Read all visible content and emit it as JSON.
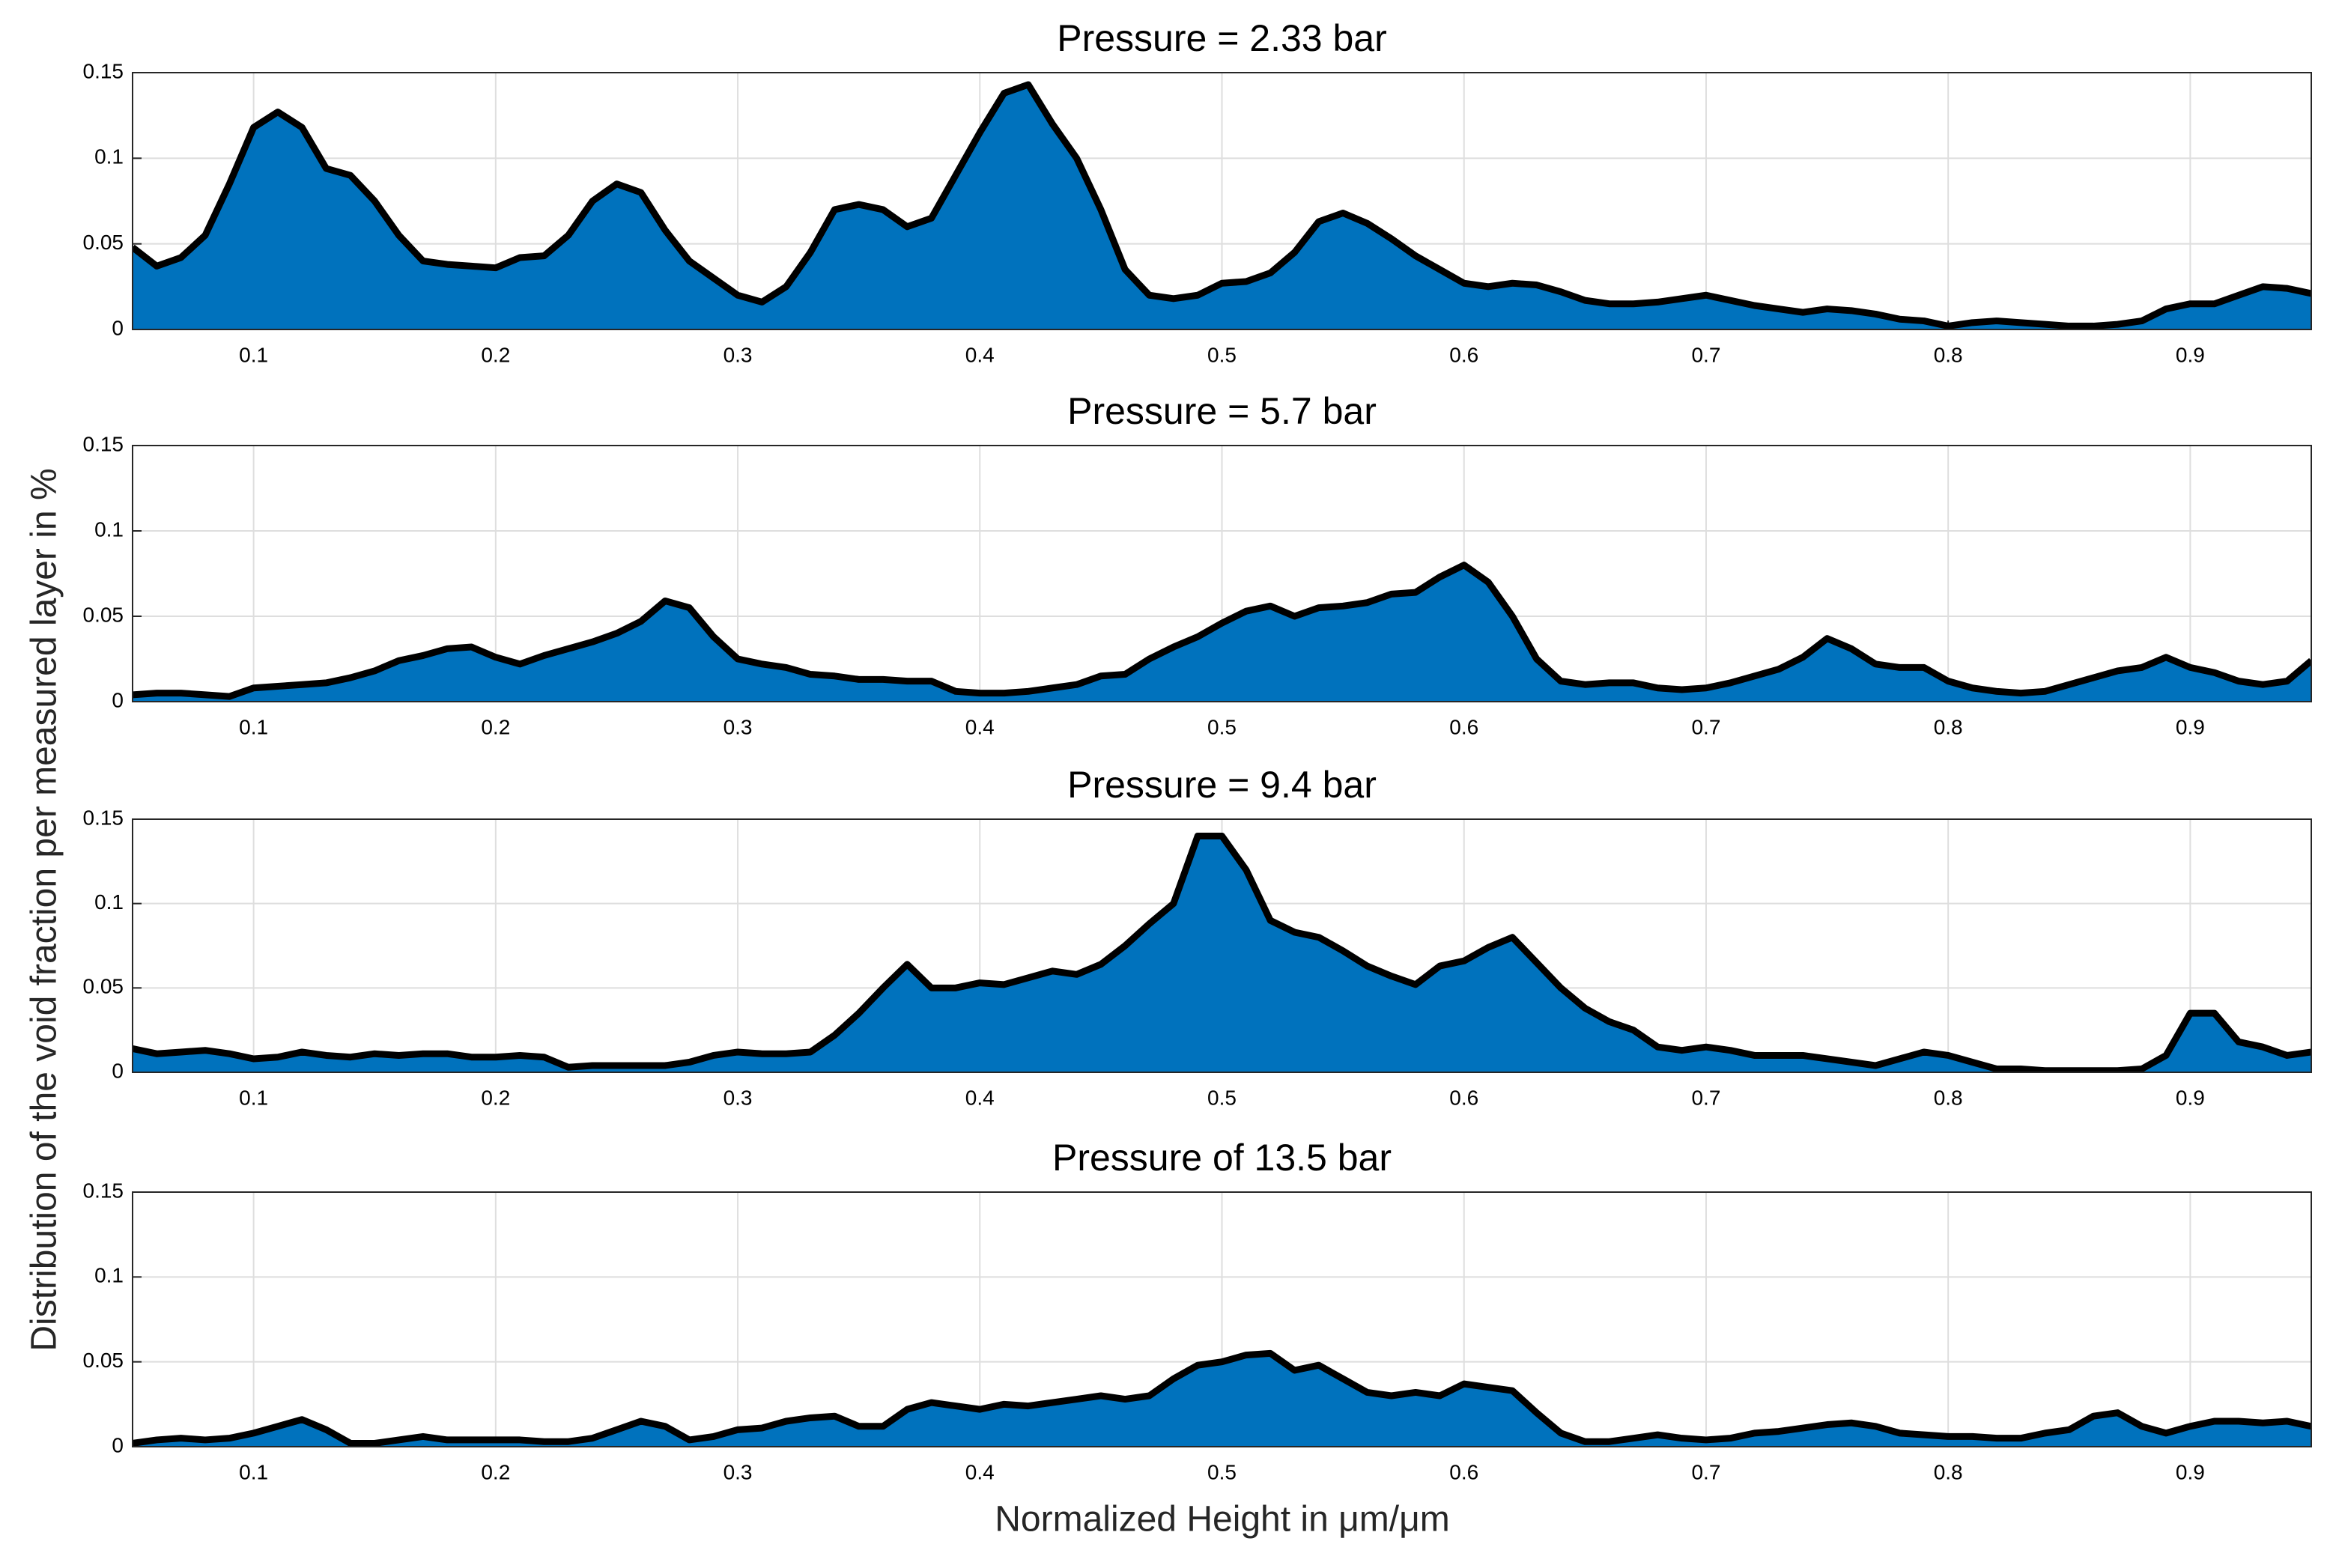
{
  "ylabel": "Distribution of the void fraction per measured layer in %",
  "xlabel": "Normalized Height in μm/μm",
  "chart_data": [
    {
      "type": "area",
      "title": "Pressure = 2.33 bar",
      "color": "#0072bd",
      "line_color": "#000000",
      "grid": true,
      "xlim": [
        0.05,
        0.95
      ],
      "xticks": [
        0.1,
        0.2,
        0.3,
        0.4,
        0.5,
        0.6,
        0.7,
        0.8,
        0.9
      ],
      "ylim": [
        0,
        0.15
      ],
      "yticks": [
        0,
        0.05,
        0.1,
        0.15
      ],
      "x": [
        0.05,
        0.06,
        0.07,
        0.08,
        0.09,
        0.1,
        0.11,
        0.12,
        0.13,
        0.14,
        0.15,
        0.16,
        0.17,
        0.18,
        0.19,
        0.2,
        0.21,
        0.22,
        0.23,
        0.24,
        0.25,
        0.26,
        0.27,
        0.28,
        0.29,
        0.3,
        0.31,
        0.32,
        0.33,
        0.34,
        0.35,
        0.36,
        0.37,
        0.38,
        0.39,
        0.4,
        0.41,
        0.42,
        0.43,
        0.44,
        0.45,
        0.46,
        0.47,
        0.48,
        0.49,
        0.5,
        0.51,
        0.52,
        0.53,
        0.54,
        0.55,
        0.56,
        0.57,
        0.58,
        0.59,
        0.6,
        0.61,
        0.62,
        0.63,
        0.64,
        0.65,
        0.66,
        0.67,
        0.68,
        0.69,
        0.7,
        0.71,
        0.72,
        0.73,
        0.74,
        0.75,
        0.76,
        0.77,
        0.78,
        0.79,
        0.8,
        0.81,
        0.82,
        0.83,
        0.84,
        0.85,
        0.86,
        0.87,
        0.88,
        0.89,
        0.9,
        0.91,
        0.92,
        0.93,
        0.94,
        0.95
      ],
      "values": [
        0.048,
        0.037,
        0.042,
        0.055,
        0.085,
        0.118,
        0.127,
        0.118,
        0.094,
        0.09,
        0.075,
        0.055,
        0.04,
        0.038,
        0.037,
        0.036,
        0.042,
        0.043,
        0.055,
        0.075,
        0.085,
        0.08,
        0.058,
        0.04,
        0.03,
        0.02,
        0.016,
        0.025,
        0.045,
        0.07,
        0.073,
        0.07,
        0.06,
        0.065,
        0.09,
        0.115,
        0.138,
        0.143,
        0.12,
        0.1,
        0.07,
        0.035,
        0.02,
        0.018,
        0.02,
        0.027,
        0.028,
        0.033,
        0.045,
        0.063,
        0.068,
        0.062,
        0.053,
        0.043,
        0.035,
        0.027,
        0.025,
        0.027,
        0.026,
        0.022,
        0.017,
        0.015,
        0.015,
        0.016,
        0.018,
        0.02,
        0.017,
        0.014,
        0.012,
        0.01,
        0.012,
        0.011,
        0.009,
        0.006,
        0.005,
        0.002,
        0.004,
        0.005,
        0.004,
        0.003,
        0.002,
        0.002,
        0.003,
        0.005,
        0.012,
        0.015,
        0.015,
        0.02,
        0.025,
        0.024,
        0.021
      ]
    },
    {
      "type": "area",
      "title": "Pressure = 5.7 bar",
      "color": "#0072bd",
      "line_color": "#000000",
      "grid": true,
      "xlim": [
        0.05,
        0.95
      ],
      "xticks": [
        0.1,
        0.2,
        0.3,
        0.4,
        0.5,
        0.6,
        0.7,
        0.8,
        0.9
      ],
      "ylim": [
        0,
        0.15
      ],
      "yticks": [
        0,
        0.05,
        0.1,
        0.15
      ],
      "x": [
        0.05,
        0.06,
        0.07,
        0.08,
        0.09,
        0.1,
        0.11,
        0.12,
        0.13,
        0.14,
        0.15,
        0.16,
        0.17,
        0.18,
        0.19,
        0.2,
        0.21,
        0.22,
        0.23,
        0.24,
        0.25,
        0.26,
        0.27,
        0.28,
        0.29,
        0.3,
        0.31,
        0.32,
        0.33,
        0.34,
        0.35,
        0.36,
        0.37,
        0.38,
        0.39,
        0.4,
        0.41,
        0.42,
        0.43,
        0.44,
        0.45,
        0.46,
        0.47,
        0.48,
        0.49,
        0.5,
        0.51,
        0.52,
        0.53,
        0.54,
        0.55,
        0.56,
        0.57,
        0.58,
        0.59,
        0.6,
        0.61,
        0.62,
        0.63,
        0.64,
        0.65,
        0.66,
        0.67,
        0.68,
        0.69,
        0.7,
        0.71,
        0.72,
        0.73,
        0.74,
        0.75,
        0.76,
        0.77,
        0.78,
        0.79,
        0.8,
        0.81,
        0.82,
        0.83,
        0.84,
        0.85,
        0.86,
        0.87,
        0.88,
        0.89,
        0.9,
        0.91,
        0.92,
        0.93,
        0.94,
        0.95
      ],
      "values": [
        0.004,
        0.005,
        0.005,
        0.004,
        0.003,
        0.008,
        0.009,
        0.01,
        0.011,
        0.014,
        0.018,
        0.024,
        0.027,
        0.031,
        0.032,
        0.026,
        0.022,
        0.027,
        0.031,
        0.035,
        0.04,
        0.047,
        0.059,
        0.055,
        0.038,
        0.025,
        0.022,
        0.02,
        0.016,
        0.015,
        0.013,
        0.013,
        0.012,
        0.012,
        0.006,
        0.005,
        0.005,
        0.006,
        0.008,
        0.01,
        0.015,
        0.016,
        0.025,
        0.032,
        0.038,
        0.046,
        0.053,
        0.056,
        0.05,
        0.055,
        0.056,
        0.058,
        0.063,
        0.064,
        0.073,
        0.08,
        0.07,
        0.05,
        0.025,
        0.012,
        0.01,
        0.011,
        0.011,
        0.008,
        0.007,
        0.008,
        0.011,
        0.015,
        0.019,
        0.026,
        0.037,
        0.031,
        0.022,
        0.02,
        0.02,
        0.012,
        0.008,
        0.006,
        0.005,
        0.006,
        0.01,
        0.014,
        0.018,
        0.02,
        0.026,
        0.02,
        0.017,
        0.012,
        0.01,
        0.012,
        0.024
      ]
    },
    {
      "type": "area",
      "title": "Pressure = 9.4 bar",
      "color": "#0072bd",
      "line_color": "#000000",
      "grid": true,
      "xlim": [
        0.05,
        0.95
      ],
      "xticks": [
        0.1,
        0.2,
        0.3,
        0.4,
        0.5,
        0.6,
        0.7,
        0.8,
        0.9
      ],
      "ylim": [
        0,
        0.15
      ],
      "yticks": [
        0,
        0.05,
        0.1,
        0.15
      ],
      "x": [
        0.05,
        0.06,
        0.07,
        0.08,
        0.09,
        0.1,
        0.11,
        0.12,
        0.13,
        0.14,
        0.15,
        0.16,
        0.17,
        0.18,
        0.19,
        0.2,
        0.21,
        0.22,
        0.23,
        0.24,
        0.25,
        0.26,
        0.27,
        0.28,
        0.29,
        0.3,
        0.31,
        0.32,
        0.33,
        0.34,
        0.35,
        0.36,
        0.37,
        0.38,
        0.39,
        0.4,
        0.41,
        0.42,
        0.43,
        0.44,
        0.45,
        0.46,
        0.47,
        0.48,
        0.49,
        0.5,
        0.51,
        0.52,
        0.53,
        0.54,
        0.55,
        0.56,
        0.57,
        0.58,
        0.59,
        0.6,
        0.61,
        0.62,
        0.63,
        0.64,
        0.65,
        0.66,
        0.67,
        0.68,
        0.69,
        0.7,
        0.71,
        0.72,
        0.73,
        0.74,
        0.75,
        0.76,
        0.77,
        0.78,
        0.79,
        0.8,
        0.81,
        0.82,
        0.83,
        0.84,
        0.85,
        0.86,
        0.87,
        0.88,
        0.89,
        0.9,
        0.91,
        0.92,
        0.93,
        0.94,
        0.95
      ],
      "values": [
        0.014,
        0.011,
        0.012,
        0.013,
        0.011,
        0.008,
        0.009,
        0.012,
        0.01,
        0.009,
        0.011,
        0.01,
        0.011,
        0.011,
        0.009,
        0.009,
        0.01,
        0.009,
        0.003,
        0.004,
        0.004,
        0.004,
        0.004,
        0.006,
        0.01,
        0.012,
        0.011,
        0.011,
        0.012,
        0.022,
        0.035,
        0.05,
        0.064,
        0.05,
        0.05,
        0.053,
        0.052,
        0.056,
        0.06,
        0.058,
        0.064,
        0.075,
        0.088,
        0.1,
        0.14,
        0.14,
        0.12,
        0.09,
        0.083,
        0.08,
        0.072,
        0.063,
        0.057,
        0.052,
        0.063,
        0.066,
        0.074,
        0.08,
        0.065,
        0.05,
        0.038,
        0.03,
        0.025,
        0.015,
        0.013,
        0.015,
        0.013,
        0.01,
        0.01,
        0.01,
        0.008,
        0.006,
        0.004,
        0.008,
        0.012,
        0.01,
        0.006,
        0.002,
        0.002,
        0.001,
        0.001,
        0.001,
        0.001,
        0.002,
        0.01,
        0.035,
        0.035,
        0.018,
        0.015,
        0.01,
        0.012
      ]
    },
    {
      "type": "area",
      "title": "Pressure of 13.5 bar",
      "color": "#0072bd",
      "line_color": "#000000",
      "grid": true,
      "xlim": [
        0.05,
        0.95
      ],
      "xticks": [
        0.1,
        0.2,
        0.3,
        0.4,
        0.5,
        0.6,
        0.7,
        0.8,
        0.9
      ],
      "ylim": [
        0,
        0.15
      ],
      "yticks": [
        0,
        0.05,
        0.1,
        0.15
      ],
      "x": [
        0.05,
        0.06,
        0.07,
        0.08,
        0.09,
        0.1,
        0.11,
        0.12,
        0.13,
        0.14,
        0.15,
        0.16,
        0.17,
        0.18,
        0.19,
        0.2,
        0.21,
        0.22,
        0.23,
        0.24,
        0.25,
        0.26,
        0.27,
        0.28,
        0.29,
        0.3,
        0.31,
        0.32,
        0.33,
        0.34,
        0.35,
        0.36,
        0.37,
        0.38,
        0.39,
        0.4,
        0.41,
        0.42,
        0.43,
        0.44,
        0.45,
        0.46,
        0.47,
        0.48,
        0.49,
        0.5,
        0.51,
        0.52,
        0.53,
        0.54,
        0.55,
        0.56,
        0.57,
        0.58,
        0.59,
        0.6,
        0.61,
        0.62,
        0.63,
        0.64,
        0.65,
        0.66,
        0.67,
        0.68,
        0.69,
        0.7,
        0.71,
        0.72,
        0.73,
        0.74,
        0.75,
        0.76,
        0.77,
        0.78,
        0.79,
        0.8,
        0.81,
        0.82,
        0.83,
        0.84,
        0.85,
        0.86,
        0.87,
        0.88,
        0.89,
        0.9,
        0.91,
        0.92,
        0.93,
        0.94,
        0.95
      ],
      "values": [
        0.002,
        0.004,
        0.005,
        0.004,
        0.005,
        0.008,
        0.012,
        0.016,
        0.01,
        0.002,
        0.002,
        0.004,
        0.006,
        0.004,
        0.004,
        0.004,
        0.004,
        0.003,
        0.003,
        0.005,
        0.01,
        0.015,
        0.012,
        0.004,
        0.006,
        0.01,
        0.011,
        0.015,
        0.017,
        0.018,
        0.012,
        0.012,
        0.022,
        0.026,
        0.024,
        0.022,
        0.025,
        0.024,
        0.026,
        0.028,
        0.03,
        0.028,
        0.03,
        0.04,
        0.048,
        0.05,
        0.054,
        0.055,
        0.045,
        0.048,
        0.04,
        0.032,
        0.03,
        0.032,
        0.03,
        0.037,
        0.035,
        0.033,
        0.02,
        0.008,
        0.003,
        0.003,
        0.005,
        0.007,
        0.005,
        0.004,
        0.005,
        0.008,
        0.009,
        0.011,
        0.013,
        0.014,
        0.012,
        0.008,
        0.007,
        0.006,
        0.006,
        0.005,
        0.005,
        0.008,
        0.01,
        0.018,
        0.02,
        0.012,
        0.008,
        0.012,
        0.015,
        0.015,
        0.014,
        0.015,
        0.012
      ]
    }
  ]
}
